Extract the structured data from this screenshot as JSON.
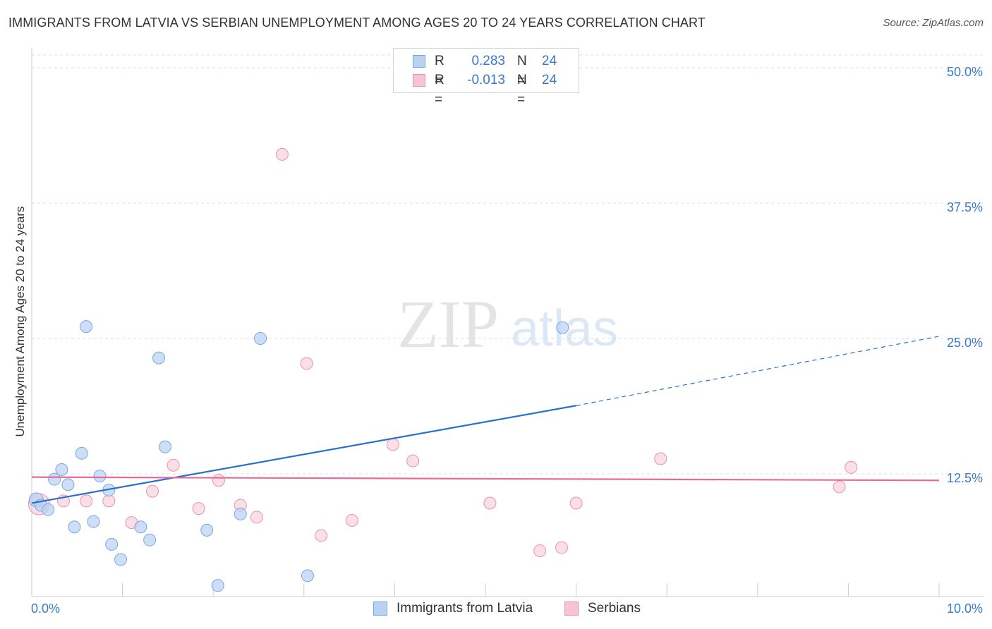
{
  "title": "IMMIGRANTS FROM LATVIA VS SERBIAN UNEMPLOYMENT AMONG AGES 20 TO 24 YEARS CORRELATION CHART",
  "source": "Source: ZipAtlas.com",
  "watermark": {
    "zip": "ZIP",
    "atlas": "atlas"
  },
  "colors": {
    "blue_fill": "#b8d2f3",
    "blue_stroke": "#7aa7df",
    "blue_line": "#2a6fd0",
    "pink_fill": "#f8c4d4",
    "pink_stroke": "#e893b0",
    "pink_line": "#e56b9a",
    "tick_text": "#3a78cc",
    "grid": "#dddddd"
  },
  "legend_top": {
    "rows": [
      {
        "r_label": "R =",
        "r_value": "0.283",
        "n_label": "N =",
        "n_value": "24"
      },
      {
        "r_label": "R =",
        "r_value": "-0.013",
        "n_label": "N =",
        "n_value": "24"
      }
    ]
  },
  "legend_bottom": {
    "latvia": "Immigrants from Latvia",
    "serbians": "Serbians"
  },
  "chart_data": {
    "type": "scatter",
    "title": "IMMIGRANTS FROM LATVIA VS SERBIAN UNEMPLOYMENT AMONG AGES 20 TO 24 YEARS CORRELATION CHART",
    "xlabel": "",
    "ylabel": "Unemployment Among Ages 20 to 24 years",
    "xlim": [
      0,
      10
    ],
    "ylim": [
      0,
      50
    ],
    "x_tick_labels": [
      {
        "value": 0,
        "label": "0.0%"
      },
      {
        "value": 10,
        "label": "10.0%"
      }
    ],
    "y_ticks": [
      {
        "value": 12.5,
        "label": "12.5%"
      },
      {
        "value": 25,
        "label": "25.0%"
      },
      {
        "value": 37.5,
        "label": "37.5%"
      },
      {
        "value": 50,
        "label": "50.0%"
      }
    ],
    "x_minor_ticks": [
      1,
      2,
      3,
      4,
      5,
      6,
      7,
      8,
      9,
      10
    ],
    "series": [
      {
        "name": "Immigrants from Latvia",
        "color": "#b8d2f3",
        "points": [
          [
            0.05,
            10.1
          ],
          [
            0.1,
            9.6
          ],
          [
            0.18,
            9.2
          ],
          [
            0.25,
            12.0
          ],
          [
            0.33,
            12.9
          ],
          [
            0.4,
            11.5
          ],
          [
            0.47,
            7.6
          ],
          [
            0.55,
            14.4
          ],
          [
            0.6,
            26.1
          ],
          [
            0.68,
            8.1
          ],
          [
            0.75,
            12.3
          ],
          [
            0.85,
            11.0
          ],
          [
            0.88,
            6.0
          ],
          [
            0.98,
            4.6
          ],
          [
            1.2,
            7.6
          ],
          [
            1.3,
            6.4
          ],
          [
            1.4,
            23.2
          ],
          [
            1.47,
            15.0
          ],
          [
            1.93,
            7.3
          ],
          [
            2.05,
            2.2
          ],
          [
            2.3,
            8.8
          ],
          [
            2.52,
            25.0
          ],
          [
            3.04,
            3.1
          ],
          [
            5.85,
            26.0
          ]
        ],
        "trend": {
          "x_start": 0,
          "y_start": 9.8,
          "x_solid_end": 6.0,
          "y_solid_end": 18.8,
          "x_end": 10,
          "y_end": 25.2
        }
      },
      {
        "name": "Serbians",
        "color": "#f8c4d4",
        "points": [
          [
            0.08,
            9.7
          ],
          [
            0.35,
            10.0
          ],
          [
            0.6,
            10.0
          ],
          [
            0.85,
            10.0
          ],
          [
            1.1,
            8.0
          ],
          [
            1.33,
            10.9
          ],
          [
            1.56,
            13.3
          ],
          [
            1.84,
            9.3
          ],
          [
            2.06,
            11.9
          ],
          [
            2.3,
            9.6
          ],
          [
            2.48,
            8.5
          ],
          [
            2.76,
            42.0
          ],
          [
            3.03,
            22.7
          ],
          [
            3.19,
            6.8
          ],
          [
            3.53,
            8.2
          ],
          [
            3.98,
            15.2
          ],
          [
            4.2,
            13.7
          ],
          [
            5.05,
            9.8
          ],
          [
            5.6,
            5.4
          ],
          [
            5.84,
            5.7
          ],
          [
            6.0,
            9.8
          ],
          [
            6.93,
            13.9
          ],
          [
            8.9,
            11.3
          ],
          [
            9.03,
            13.1
          ]
        ],
        "trend": {
          "x_start": 0,
          "y_start": 12.2,
          "x_end": 10,
          "y_end": 11.9
        }
      }
    ]
  }
}
